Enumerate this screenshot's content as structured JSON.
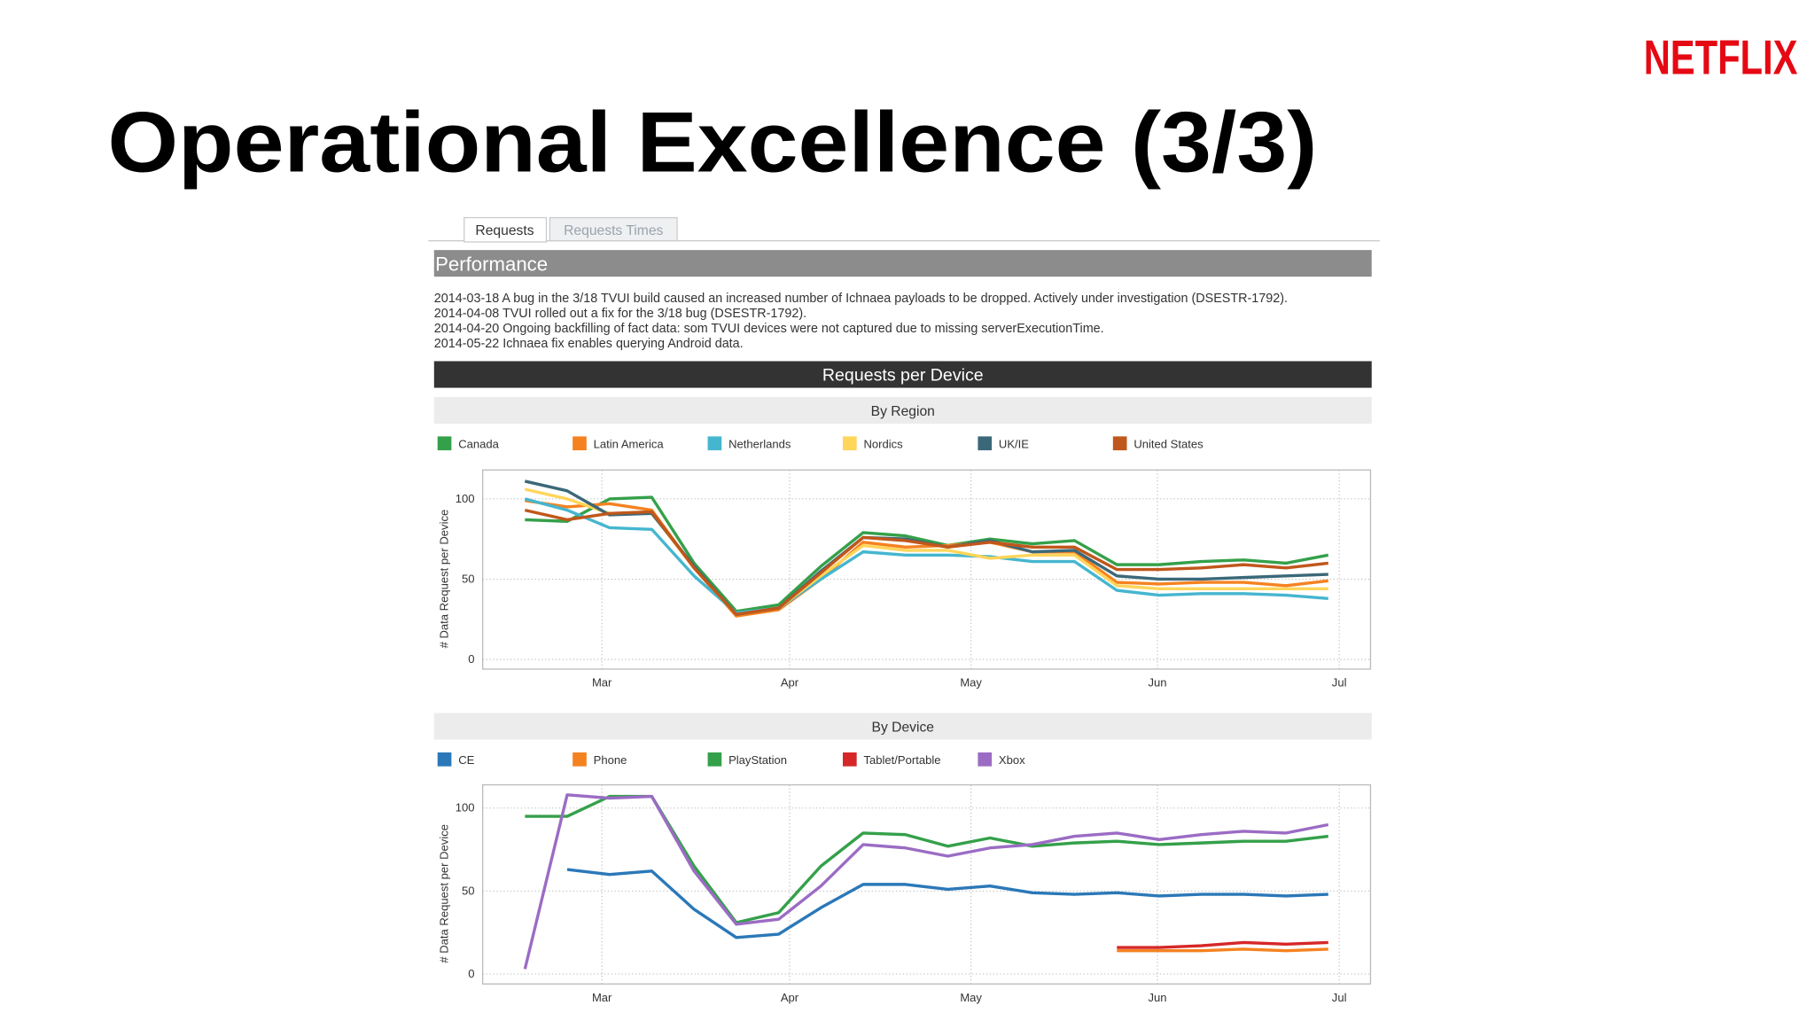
{
  "header": {
    "logo": "NETFLIX",
    "title": "Operational Excellence (3/3)"
  },
  "tabs": [
    "Requests",
    "Requests Times"
  ],
  "section": "Performance",
  "notes": [
    "2014-03-18 A bug in the 3/18 TVUI build caused an increased number of Ichnaea payloads to be dropped. Actively under investigation (DSESTR-1792).",
    "2014-04-08 TVUI rolled out a fix for the 3/18 bug (DSESTR-1792).",
    "2014-04-20 Ongoing backfilling of fact data: som TVUI devices were not captured due to missing serverExecutionTime.",
    "2014-05-22 Ichnaea fix enables querying Android data."
  ],
  "panel_title": "Requests per Device",
  "chart_data": [
    {
      "type": "line",
      "title": "By Region",
      "y_label": "# Data Request per Device",
      "x": [
        0,
        1,
        2,
        3,
        4,
        5,
        6,
        7,
        8,
        9,
        10,
        11,
        12,
        13,
        14,
        15,
        16,
        17,
        18,
        19
      ],
      "xlim": [
        -1,
        20
      ],
      "xticks": [
        {
          "value": 1.82,
          "label": "Mar"
        },
        {
          "value": 6.26,
          "label": "Apr"
        },
        {
          "value": 10.55,
          "label": "May"
        },
        {
          "value": 14.96,
          "label": "Jun"
        },
        {
          "value": 19.26,
          "label": "Jul"
        }
      ],
      "ylim": [
        -6,
        118
      ],
      "yticks": [
        0,
        50,
        100
      ],
      "grid": true,
      "series": [
        {
          "name": "Canada",
          "color": "#34a04a",
          "values": [
            87,
            86,
            100,
            101,
            60,
            30,
            34,
            58,
            79,
            77,
            71,
            75,
            72,
            74,
            59,
            59,
            61,
            62,
            60,
            65
          ]
        },
        {
          "name": "Latin America",
          "color": "#f58220",
          "values": [
            99,
            95,
            97,
            93,
            57,
            27,
            31,
            50,
            73,
            70,
            71,
            73,
            67,
            67,
            48,
            47,
            48,
            48,
            46,
            49
          ]
        },
        {
          "name": "Netherlands",
          "color": "#45b6cf",
          "values": [
            100,
            93,
            82,
            81,
            52,
            29,
            32,
            50,
            67,
            65,
            65,
            64,
            61,
            61,
            43,
            40,
            41,
            41,
            40,
            38
          ]
        },
        {
          "name": "Nordics",
          "color": "#ffd55a",
          "values": [
            106,
            100,
            91,
            91,
            57,
            28,
            32,
            52,
            71,
            68,
            68,
            63,
            65,
            65,
            46,
            44,
            44,
            44,
            44,
            44
          ]
        },
        {
          "name": "UK/IE",
          "color": "#3b6878",
          "values": [
            111,
            105,
            90,
            91,
            58,
            28,
            32,
            55,
            76,
            75,
            70,
            74,
            67,
            68,
            52,
            50,
            50,
            51,
            52,
            53
          ]
        },
        {
          "name": "United States",
          "color": "#c0571b",
          "values": [
            93,
            87,
            91,
            92,
            57,
            28,
            32,
            54,
            76,
            74,
            70,
            73,
            70,
            70,
            56,
            56,
            57,
            59,
            57,
            60
          ]
        }
      ]
    },
    {
      "type": "line",
      "title": "By Device",
      "y_label": "# Data Request per Device",
      "x": [
        0,
        1,
        2,
        3,
        4,
        5,
        6,
        7,
        8,
        9,
        10,
        11,
        12,
        13,
        14,
        15,
        16,
        17,
        18,
        19
      ],
      "xlim": [
        -1,
        20
      ],
      "xticks": [
        {
          "value": 1.82,
          "label": "Mar"
        },
        {
          "value": 6.26,
          "label": "Apr"
        },
        {
          "value": 10.55,
          "label": "May"
        },
        {
          "value": 14.96,
          "label": "Jun"
        },
        {
          "value": 19.26,
          "label": "Jul"
        }
      ],
      "ylim": [
        -6,
        114
      ],
      "yticks": [
        0,
        50,
        100
      ],
      "grid": true,
      "series": [
        {
          "name": "CE",
          "color": "#2b78b8",
          "values": [
            null,
            63,
            60,
            62,
            39,
            22,
            24,
            40,
            54,
            54,
            51,
            53,
            49,
            48,
            49,
            47,
            48,
            48,
            47,
            48
          ]
        },
        {
          "name": "Phone",
          "color": "#f58220",
          "values": [
            null,
            null,
            null,
            null,
            null,
            null,
            null,
            null,
            null,
            null,
            null,
            null,
            null,
            null,
            14,
            14,
            14,
            15,
            14,
            15
          ]
        },
        {
          "name": "PlayStation",
          "color": "#34a04a",
          "values": [
            95,
            95,
            107,
            107,
            65,
            31,
            37,
            65,
            85,
            84,
            77,
            82,
            77,
            79,
            80,
            78,
            79,
            80,
            80,
            83
          ]
        },
        {
          "name": "Tablet/Portable",
          "color": "#d62728",
          "values": [
            null,
            null,
            null,
            null,
            null,
            null,
            null,
            null,
            null,
            null,
            null,
            null,
            null,
            null,
            16,
            16,
            17,
            19,
            18,
            19
          ]
        },
        {
          "name": "Xbox",
          "color": "#9b6cc4",
          "values": [
            3,
            108,
            106,
            107,
            62,
            30,
            33,
            53,
            78,
            76,
            71,
            76,
            78,
            83,
            85,
            81,
            84,
            86,
            85,
            90
          ]
        }
      ]
    }
  ]
}
